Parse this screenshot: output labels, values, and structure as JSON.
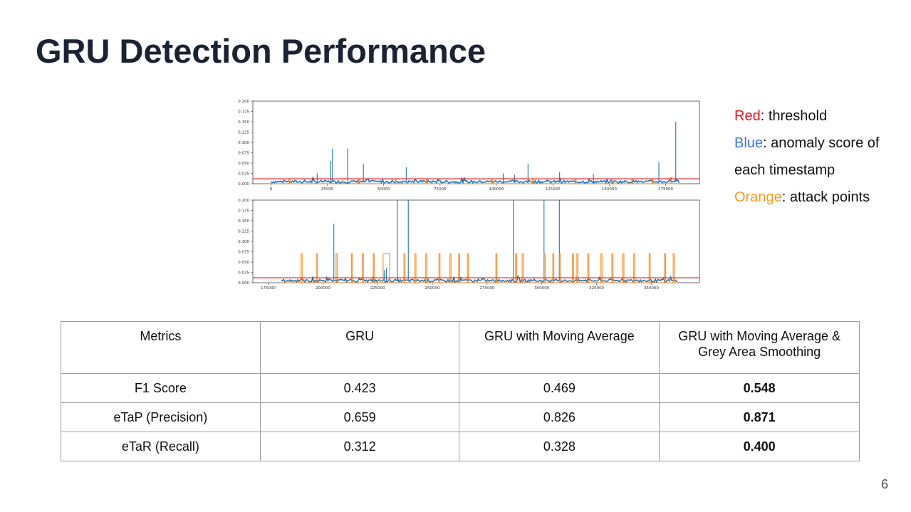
{
  "slide": {
    "title": "GRU Detection Performance",
    "page_number": "6"
  },
  "legend": {
    "red_word": "Red",
    "red_text": ": threshold",
    "blue_word": "Blue",
    "blue_text": ": anomaly score of",
    "blue_text2": "each timestamp",
    "orange_word": "Orange",
    "orange_text": ": attack points"
  },
  "colors": {
    "threshold": "#e8141b",
    "anomaly_score": "#1f77b4",
    "attack_points": "#ff7f0e",
    "title": "#1b2234"
  },
  "chart_data": [
    {
      "type": "line",
      "xlim": [
        -8000,
        190000
      ],
      "ylim": [
        0,
        0.2
      ],
      "xticks": [
        0,
        25000,
        50000,
        75000,
        100000,
        125000,
        150000,
        175000
      ],
      "yticks": [
        0.0,
        0.025,
        0.05,
        0.075,
        0.1,
        0.125,
        0.15,
        0.175,
        0.2
      ],
      "xtick_labels": [
        "0",
        "25000",
        "50000",
        "75000",
        "100000",
        "125000",
        "150000",
        "175000"
      ],
      "ytick_labels": [
        "0.000",
        "0.025",
        "0.050",
        "0.075",
        "0.100",
        "0.125",
        "0.150",
        "0.175",
        "0.200"
      ],
      "x_range": [
        0,
        181000
      ],
      "threshold": 0.012,
      "anomaly_baseline": 0.004,
      "anomaly_spikes": [
        {
          "x": 20500,
          "y": 0.025
        },
        {
          "x": 26500,
          "y": 0.055
        },
        {
          "x": 27300,
          "y": 0.085
        },
        {
          "x": 34000,
          "y": 0.085
        },
        {
          "x": 41000,
          "y": 0.048
        },
        {
          "x": 60000,
          "y": 0.04
        },
        {
          "x": 103000,
          "y": 0.025
        },
        {
          "x": 108000,
          "y": 0.022
        },
        {
          "x": 114000,
          "y": 0.048
        },
        {
          "x": 128000,
          "y": 0.028
        },
        {
          "x": 143000,
          "y": 0.024
        },
        {
          "x": 172000,
          "y": 0.052
        },
        {
          "x": 179500,
          "y": 0.15
        }
      ],
      "attack_intervals": [
        [
          8000,
          8500,
          0.01
        ],
        [
          27000,
          32000,
          0.012
        ],
        [
          39000,
          39400,
          0.012
        ],
        [
          55000,
          55400,
          0.01
        ],
        [
          69000,
          69300,
          0.012
        ],
        [
          98000,
          98300,
          0.01
        ],
        [
          116000,
          116300,
          0.01
        ],
        [
          135000,
          135300,
          0.012
        ],
        [
          151000,
          151300,
          0.012
        ],
        [
          160000,
          160300,
          0.01
        ],
        [
          169000,
          169300,
          0.012
        ],
        [
          177000,
          177600,
          0.015
        ]
      ]
    },
    {
      "type": "line",
      "xlim": [
        168000,
        372000
      ],
      "ylim": [
        0,
        0.2
      ],
      "xticks": [
        175000,
        200000,
        225000,
        250000,
        275000,
        300000,
        325000,
        350000
      ],
      "yticks": [
        0.0,
        0.025,
        0.05,
        0.075,
        0.1,
        0.125,
        0.15,
        0.175,
        0.2
      ],
      "xtick_labels": [
        "175000",
        "200000",
        "225000",
        "250000",
        "275000",
        "300000",
        "325000",
        "350000"
      ],
      "ytick_labels": [
        "0.000",
        "0.025",
        "0.050",
        "0.075",
        "0.100",
        "0.125",
        "0.150",
        "0.175",
        "0.200"
      ],
      "x_range": [
        181000,
        362000
      ],
      "threshold": 0.012,
      "anomaly_baseline": 0.004,
      "anomaly_spikes": [
        {
          "x": 205000,
          "y": 0.143
        },
        {
          "x": 228000,
          "y": 0.03
        },
        {
          "x": 229000,
          "y": 0.035
        },
        {
          "x": 234000,
          "y": 0.2
        },
        {
          "x": 239000,
          "y": 0.2
        },
        {
          "x": 287000,
          "y": 0.2
        },
        {
          "x": 301000,
          "y": 0.2
        },
        {
          "x": 308000,
          "y": 0.2
        }
      ],
      "attack_intervals": [
        [
          190000,
          190500,
          0.07
        ],
        [
          197000,
          197500,
          0.07
        ],
        [
          206000,
          206500,
          0.07
        ],
        [
          213000,
          213500,
          0.07
        ],
        [
          218000,
          218500,
          0.07
        ],
        [
          223000,
          223400,
          0.07
        ],
        [
          227500,
          230500,
          0.07
        ],
        [
          237000,
          237500,
          0.07
        ],
        [
          242000,
          242500,
          0.07
        ],
        [
          247000,
          247500,
          0.07
        ],
        [
          253000,
          253500,
          0.07
        ],
        [
          258000,
          258500,
          0.07
        ],
        [
          262000,
          262500,
          0.07
        ],
        [
          266000,
          266500,
          0.07
        ],
        [
          279000,
          279500,
          0.07
        ],
        [
          288000,
          288500,
          0.07
        ],
        [
          291000,
          291500,
          0.07
        ],
        [
          301000,
          301500,
          0.07
        ],
        [
          305000,
          305500,
          0.07
        ],
        [
          308000,
          308500,
          0.07
        ],
        [
          314000,
          314500,
          0.07
        ],
        [
          316000,
          316500,
          0.07
        ],
        [
          321000,
          321500,
          0.07
        ],
        [
          327000,
          327500,
          0.07
        ],
        [
          332000,
          332500,
          0.07
        ],
        [
          337000,
          337500,
          0.07
        ],
        [
          342000,
          342500,
          0.07
        ],
        [
          349000,
          349500,
          0.07
        ],
        [
          356000,
          356500,
          0.07
        ],
        [
          360000,
          360500,
          0.07
        ]
      ]
    }
  ],
  "table": {
    "headers": [
      "Metrics",
      "GRU",
      "GRU with Moving Average",
      "GRU with Moving Average & Grey Area Smoothing"
    ],
    "rows": [
      [
        "F1 Score",
        "0.423",
        "0.469",
        "0.548"
      ],
      [
        "eTaP (Precision)",
        "0.659",
        "0.826",
        "0.871"
      ],
      [
        "eTaR (Recall)",
        "0.312",
        "0.328",
        "0.400"
      ]
    ]
  }
}
